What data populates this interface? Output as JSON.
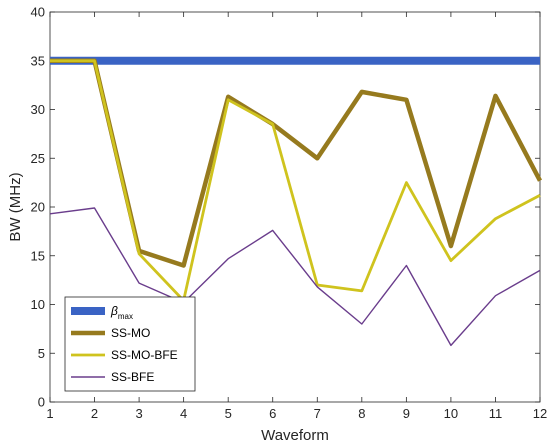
{
  "chart_data": {
    "type": "line",
    "xlabel": "Waveform",
    "ylabel": "BW (MHz)",
    "xlim": [
      1,
      12
    ],
    "ylim": [
      0,
      40
    ],
    "x_ticks": [
      1,
      2,
      3,
      4,
      5,
      6,
      7,
      8,
      9,
      10,
      11,
      12
    ],
    "y_ticks": [
      0,
      5,
      10,
      15,
      20,
      25,
      30,
      35,
      40
    ],
    "grid": false,
    "legend_position": "bottom-left",
    "x": [
      1,
      2,
      3,
      4,
      5,
      6,
      7,
      8,
      9,
      10,
      11,
      12
    ],
    "series": [
      {
        "name": "β",
        "name_subscript": "max",
        "color": "#3a63c4",
        "values": [
          35,
          35,
          35,
          35,
          35,
          35,
          35,
          35,
          35,
          35,
          35,
          35
        ]
      },
      {
        "name": "SS-MO",
        "color": "#967a1e",
        "values": [
          35,
          35,
          15.5,
          14,
          31.3,
          28.5,
          25,
          31.8,
          31,
          16,
          31.4,
          22.7
        ]
      },
      {
        "name": "SS-MO-BFE",
        "color": "#cfc31e",
        "values": [
          35,
          35,
          15.2,
          10.4,
          31,
          28.5,
          12,
          11.4,
          22.5,
          14.5,
          18.8,
          21.2
        ]
      },
      {
        "name": "SS-BFE",
        "color": "#6a3d8c",
        "values": [
          19.3,
          19.9,
          12.2,
          10.2,
          14.7,
          17.6,
          11.8,
          8,
          14,
          5.8,
          10.9,
          13.5
        ]
      }
    ]
  }
}
